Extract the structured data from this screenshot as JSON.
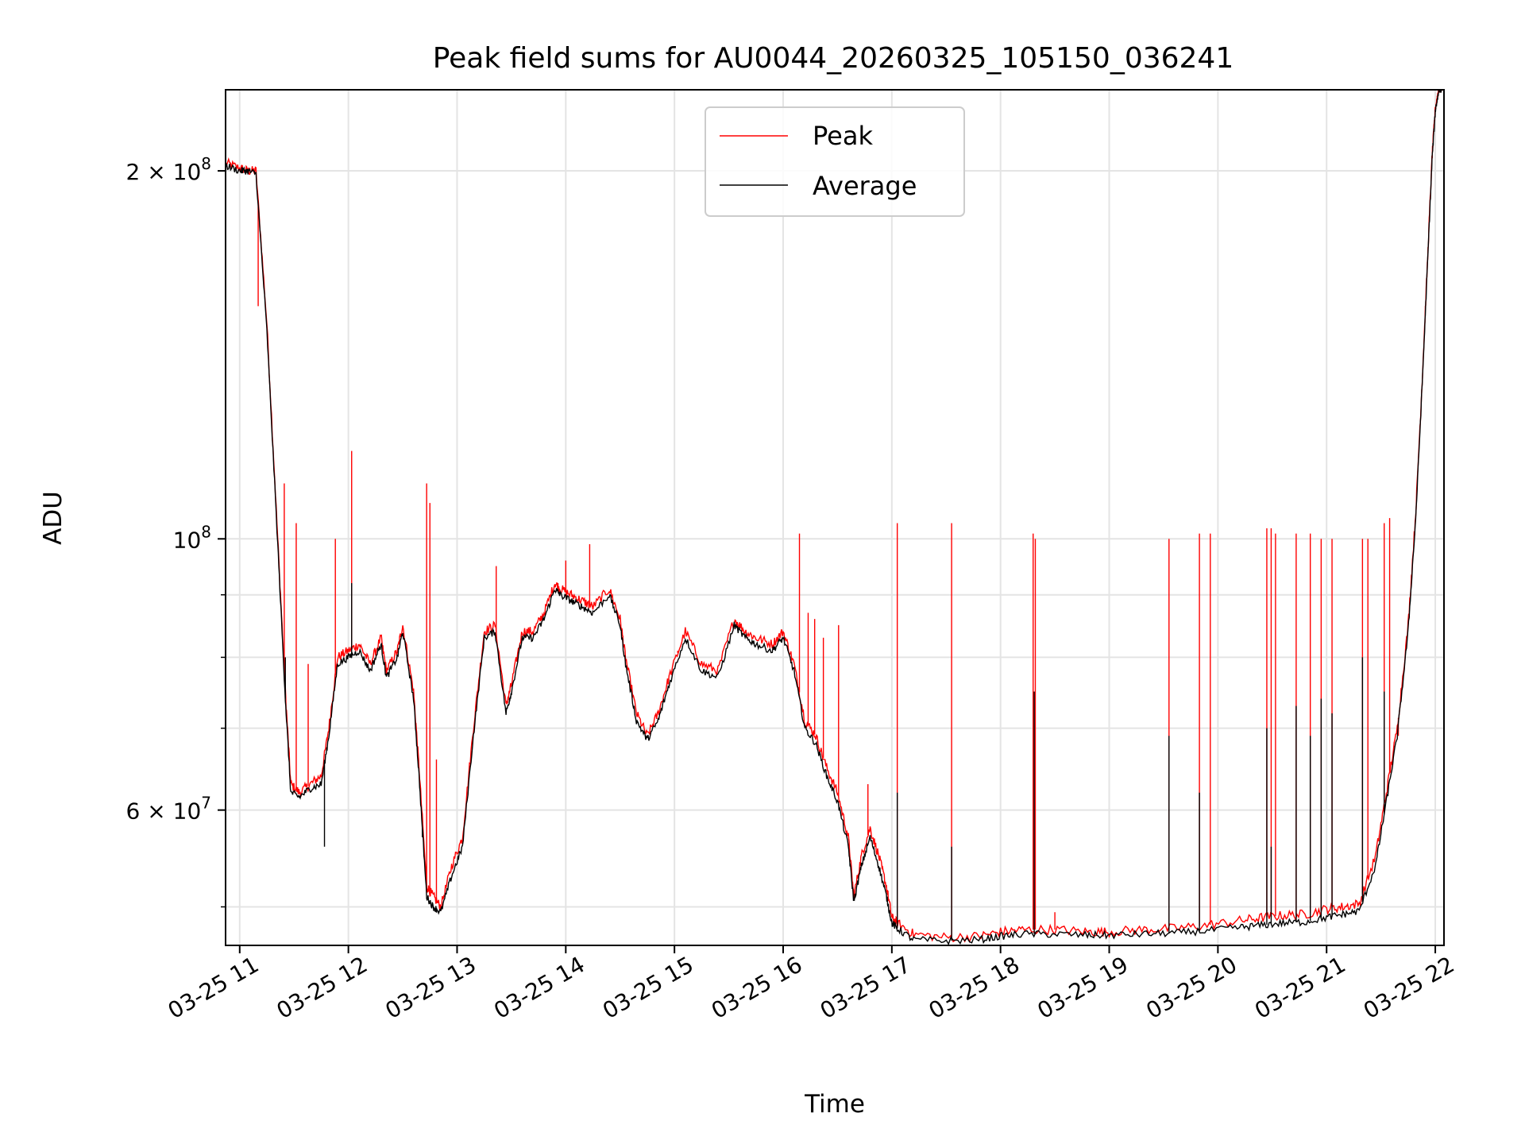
{
  "chart_data": {
    "type": "line",
    "title": "Peak field sums for AU0044_20260325_105150_036241",
    "xlabel": "Time",
    "ylabel": "ADU",
    "yscale": "log",
    "xlim": [
      10.87,
      22.08
    ],
    "ylim": [
      46500000,
      233000000
    ],
    "grid": true,
    "legend_position": "top-center",
    "x_ticks": [
      {
        "value": 11,
        "label": "03-25 11"
      },
      {
        "value": 12,
        "label": "03-25 12"
      },
      {
        "value": 13,
        "label": "03-25 13"
      },
      {
        "value": 14,
        "label": "03-25 14"
      },
      {
        "value": 15,
        "label": "03-25 15"
      },
      {
        "value": 16,
        "label": "03-25 16"
      },
      {
        "value": 17,
        "label": "03-25 17"
      },
      {
        "value": 18,
        "label": "03-25 18"
      },
      {
        "value": 19,
        "label": "03-25 19"
      },
      {
        "value": 20,
        "label": "03-25 20"
      },
      {
        "value": 21,
        "label": "03-25 21"
      },
      {
        "value": 22,
        "label": "03-25 22"
      }
    ],
    "y_major_ticks": [
      {
        "value": 60000000,
        "base": "6 × 10",
        "exp": "7"
      },
      {
        "value": 100000000,
        "base": "10",
        "exp": "8"
      },
      {
        "value": 200000000,
        "base": "2 × 10",
        "exp": "8"
      }
    ],
    "y_minor_ticks": [
      50000000,
      70000000,
      80000000,
      90000000
    ],
    "series": [
      {
        "name": "Peak",
        "color": "#ff0000",
        "x": [
          10.87,
          11.0,
          11.07,
          11.15,
          11.25,
          11.35,
          11.42,
          11.47,
          11.55,
          11.65,
          11.75,
          11.82,
          11.9,
          12.0,
          12.1,
          12.2,
          12.3,
          12.35,
          12.45,
          12.5,
          12.6,
          12.65,
          12.72,
          12.78,
          12.85,
          12.95,
          13.05,
          13.15,
          13.25,
          13.35,
          13.45,
          13.5,
          13.6,
          13.7,
          13.8,
          13.9,
          13.95,
          14.05,
          14.15,
          14.25,
          14.4,
          14.5,
          14.55,
          14.65,
          14.75,
          14.85,
          14.95,
          15.1,
          15.25,
          15.4,
          15.55,
          15.65,
          15.75,
          15.9,
          16.0,
          16.1,
          16.2,
          16.3,
          16.4,
          16.5,
          16.6,
          16.65,
          16.72,
          16.8,
          16.88,
          16.95,
          17.0,
          17.05,
          17.2,
          17.5,
          17.8,
          18.0,
          18.2,
          18.5,
          18.8,
          19.0,
          19.3,
          19.6,
          19.9,
          20.2,
          20.4,
          20.6,
          20.8,
          21.0,
          21.15,
          21.3,
          21.45,
          21.55,
          21.65,
          21.75,
          21.82,
          21.88,
          21.93,
          21.97,
          22.0,
          22.03,
          22.08
        ],
        "y": [
          203000000,
          201000000,
          200000000,
          200000000,
          150000000,
          100000000,
          75000000,
          63000000,
          62000000,
          63000000,
          64000000,
          70000000,
          80000000,
          81000000,
          82000000,
          79000000,
          83000000,
          78000000,
          81000000,
          85000000,
          75000000,
          65000000,
          52000000,
          51000000,
          50000000,
          54000000,
          57000000,
          70000000,
          84000000,
          85000000,
          73000000,
          76000000,
          84000000,
          84000000,
          87000000,
          92000000,
          91000000,
          90000000,
          89000000,
          88000000,
          91000000,
          86000000,
          80000000,
          72000000,
          69000000,
          72000000,
          77000000,
          84000000,
          79000000,
          78000000,
          86000000,
          84000000,
          83000000,
          82000000,
          84000000,
          79000000,
          71000000,
          69000000,
          65000000,
          62000000,
          57000000,
          51000000,
          55000000,
          58000000,
          55000000,
          52000000,
          49000000,
          48500000,
          47500000,
          47200000,
          47300000,
          47700000,
          47900000,
          47900000,
          47700000,
          47700000,
          47900000,
          48000000,
          48300000,
          48700000,
          49000000,
          49200000,
          49300000,
          49800000,
          50000000,
          50300000,
          55000000,
          62000000,
          70000000,
          85000000,
          105000000,
          135000000,
          170000000,
          205000000,
          225000000,
          233000000,
          235000000
        ]
      },
      {
        "name": "Average",
        "color": "#000000",
        "x": [
          10.87,
          11.0,
          11.07,
          11.15,
          11.25,
          11.35,
          11.42,
          11.47,
          11.55,
          11.65,
          11.75,
          11.82,
          11.9,
          12.0,
          12.1,
          12.2,
          12.3,
          12.35,
          12.45,
          12.5,
          12.6,
          12.65,
          12.72,
          12.78,
          12.85,
          12.95,
          13.05,
          13.15,
          13.25,
          13.35,
          13.45,
          13.5,
          13.6,
          13.7,
          13.8,
          13.9,
          13.95,
          14.05,
          14.15,
          14.25,
          14.4,
          14.5,
          14.55,
          14.65,
          14.75,
          14.85,
          14.95,
          15.1,
          15.25,
          15.4,
          15.55,
          15.65,
          15.75,
          15.9,
          16.0,
          16.1,
          16.2,
          16.3,
          16.4,
          16.5,
          16.6,
          16.65,
          16.72,
          16.8,
          16.88,
          16.95,
          17.0,
          17.05,
          17.2,
          17.5,
          17.8,
          18.0,
          18.2,
          18.5,
          18.8,
          19.0,
          19.3,
          19.6,
          19.9,
          20.2,
          20.4,
          20.6,
          20.8,
          21.0,
          21.15,
          21.3,
          21.45,
          21.55,
          21.65,
          21.75,
          21.82,
          21.88,
          21.93,
          21.97,
          22.0,
          22.03,
          22.08
        ],
        "y": [
          202000000,
          200000000,
          200000000,
          199000000,
          148000000,
          99000000,
          74000000,
          62000000,
          61500000,
          62500000,
          63000000,
          69000000,
          79000000,
          80000000,
          81000000,
          78000000,
          82000000,
          77000000,
          80000000,
          84000000,
          74000000,
          64000000,
          51000000,
          50000000,
          49500000,
          53000000,
          56000000,
          69000000,
          83000000,
          84000000,
          72000000,
          75000000,
          83000000,
          83000000,
          86000000,
          91000000,
          90000000,
          89000000,
          88000000,
          87000000,
          90000000,
          85000000,
          79000000,
          71000000,
          68500000,
          71000000,
          76000000,
          83000000,
          78000000,
          77000000,
          85000000,
          83000000,
          82000000,
          81000000,
          83000000,
          78000000,
          70000000,
          68000000,
          64000000,
          61000000,
          56000000,
          50500000,
          54000000,
          57000000,
          54000000,
          51000000,
          48500000,
          48000000,
          47000000,
          46900000,
          47000000,
          47300000,
          47500000,
          47500000,
          47400000,
          47400000,
          47500000,
          47600000,
          47800000,
          48100000,
          48300000,
          48500000,
          48600000,
          49000000,
          49300000,
          49600000,
          54000000,
          61000000,
          69000000,
          84000000,
          104000000,
          134000000,
          169000000,
          204000000,
          224000000,
          232000000,
          235000000
        ]
      }
    ],
    "peak_spikes": [
      {
        "x": 11.14,
        "y": 201000000
      },
      {
        "x": 11.17,
        "y": 155000000
      },
      {
        "x": 11.41,
        "y": 111000000
      },
      {
        "x": 11.52,
        "y": 103000000
      },
      {
        "x": 11.63,
        "y": 79000000
      },
      {
        "x": 11.88,
        "y": 100000000
      },
      {
        "x": 12.03,
        "y": 118000000
      },
      {
        "x": 12.72,
        "y": 111000000
      },
      {
        "x": 12.75,
        "y": 107000000
      },
      {
        "x": 12.81,
        "y": 66000000
      },
      {
        "x": 13.36,
        "y": 95000000
      },
      {
        "x": 14.0,
        "y": 96000000
      },
      {
        "x": 14.22,
        "y": 99000000
      },
      {
        "x": 15.03,
        "y": 81000000
      },
      {
        "x": 16.15,
        "y": 101000000
      },
      {
        "x": 16.23,
        "y": 87000000
      },
      {
        "x": 16.29,
        "y": 86000000
      },
      {
        "x": 16.37,
        "y": 83000000
      },
      {
        "x": 16.51,
        "y": 85000000
      },
      {
        "x": 16.78,
        "y": 63000000
      },
      {
        "x": 17.05,
        "y": 103000000
      },
      {
        "x": 17.55,
        "y": 103000000
      },
      {
        "x": 18.3,
        "y": 101000000
      },
      {
        "x": 18.32,
        "y": 100000000
      },
      {
        "x": 18.5,
        "y": 49500000
      },
      {
        "x": 19.55,
        "y": 100000000
      },
      {
        "x": 19.83,
        "y": 101000000
      },
      {
        "x": 19.93,
        "y": 101000000
      },
      {
        "x": 20.45,
        "y": 102000000
      },
      {
        "x": 20.49,
        "y": 102000000
      },
      {
        "x": 20.53,
        "y": 101000000
      },
      {
        "x": 20.72,
        "y": 101000000
      },
      {
        "x": 20.85,
        "y": 101000000
      },
      {
        "x": 20.95,
        "y": 100000000
      },
      {
        "x": 21.05,
        "y": 100000000
      },
      {
        "x": 21.33,
        "y": 100000000
      },
      {
        "x": 21.38,
        "y": 100000000
      },
      {
        "x": 21.53,
        "y": 103000000
      },
      {
        "x": 21.58,
        "y": 104000000
      },
      {
        "x": 21.66,
        "y": 69000000
      }
    ],
    "average_spikes": [
      {
        "x": 11.42,
        "y": 80000000
      },
      {
        "x": 11.78,
        "y": 56000000
      },
      {
        "x": 12.03,
        "y": 92000000
      },
      {
        "x": 12.68,
        "y": 57000000
      },
      {
        "x": 17.05,
        "y": 62000000
      },
      {
        "x": 17.55,
        "y": 56000000
      },
      {
        "x": 18.31,
        "y": 75000000
      },
      {
        "x": 19.55,
        "y": 69000000
      },
      {
        "x": 19.83,
        "y": 62000000
      },
      {
        "x": 20.45,
        "y": 70000000
      },
      {
        "x": 20.49,
        "y": 56000000
      },
      {
        "x": 20.72,
        "y": 73000000
      },
      {
        "x": 20.85,
        "y": 69000000
      },
      {
        "x": 20.95,
        "y": 74000000
      },
      {
        "x": 21.05,
        "y": 72000000
      },
      {
        "x": 21.33,
        "y": 80000000
      },
      {
        "x": 21.53,
        "y": 75000000
      }
    ]
  }
}
